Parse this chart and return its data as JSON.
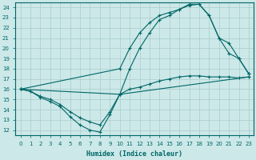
{
  "xlabel": "Humidex (Indice chaleur)",
  "xlim": [
    -0.5,
    23.5
  ],
  "ylim": [
    11.5,
    24.5
  ],
  "yticks": [
    12,
    13,
    14,
    15,
    16,
    17,
    18,
    19,
    20,
    21,
    22,
    23,
    24
  ],
  "xticks": [
    0,
    1,
    2,
    3,
    4,
    5,
    6,
    7,
    8,
    9,
    10,
    11,
    12,
    13,
    14,
    15,
    16,
    17,
    18,
    19,
    20,
    21,
    22,
    23
  ],
  "bg_color": "#cce8e8",
  "grid_color": "#aacccc",
  "line_color": "#006666",
  "curve1_x": [
    0,
    1,
    2,
    3,
    4,
    5,
    6,
    7,
    8,
    9,
    10,
    23
  ],
  "curve1_y": [
    16.0,
    15.8,
    15.2,
    14.8,
    14.3,
    13.3,
    12.5,
    12.0,
    11.8,
    13.5,
    15.5,
    17.2
  ],
  "curve2_x": [
    0,
    1,
    2,
    3,
    4,
    5,
    6,
    7,
    8,
    9,
    10,
    11,
    12,
    13,
    14,
    15,
    16,
    17,
    18,
    19,
    20,
    21,
    22,
    23
  ],
  "curve2_y": [
    16.0,
    15.8,
    15.3,
    15.0,
    14.5,
    13.8,
    13.2,
    12.8,
    12.5,
    13.8,
    15.5,
    16.0,
    16.2,
    16.5,
    16.8,
    17.0,
    17.2,
    17.3,
    17.3,
    17.2,
    17.2,
    17.2,
    17.1,
    17.2
  ],
  "curve3_x": [
    0,
    10,
    11,
    12,
    13,
    14,
    15,
    16,
    17,
    18,
    19,
    20,
    21,
    22,
    23
  ],
  "curve3_y": [
    16.0,
    18.0,
    20.0,
    21.5,
    22.5,
    23.2,
    23.5,
    23.8,
    24.2,
    24.3,
    23.2,
    21.0,
    19.5,
    19.0,
    17.5
  ],
  "curve4_x": [
    0,
    10,
    11,
    12,
    13,
    14,
    15,
    16,
    17,
    18,
    19,
    20,
    21,
    22,
    23
  ],
  "curve4_y": [
    16.0,
    15.5,
    18.0,
    20.0,
    21.5,
    22.8,
    23.2,
    23.8,
    24.3,
    24.3,
    23.2,
    21.0,
    20.5,
    19.0,
    17.5
  ]
}
